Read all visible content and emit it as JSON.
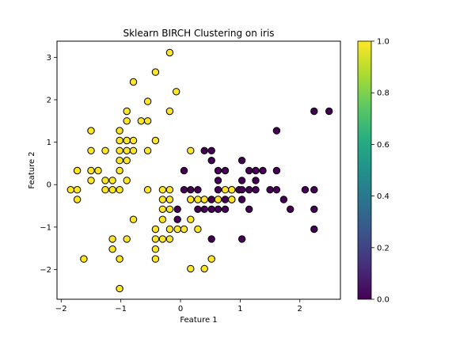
{
  "chart_data": {
    "type": "scatter",
    "title": "Sklearn BIRCH Clustering on iris",
    "xlabel": "Feature 1",
    "ylabel": "Feature 2",
    "xlim": [
      -2.07,
      2.68
    ],
    "ylim": [
      -2.7,
      3.38
    ],
    "xticks": [
      -2,
      -1,
      0,
      1,
      2
    ],
    "yticks": [
      -2,
      -1,
      0,
      1,
      2,
      3
    ],
    "grid": false,
    "colorbar": {
      "range": [
        0.0,
        1.0
      ],
      "ticks": [
        "0.0",
        "0.2",
        "0.4",
        "0.6",
        "0.8",
        "1.0"
      ],
      "colormap": "viridis"
    },
    "colors": {
      "cluster_0": "#440154",
      "cluster_1": "#fde725"
    },
    "series": [
      {
        "cluster": 0,
        "points": [
          [
            -0.05,
            -0.58
          ],
          [
            -0.05,
            -0.82
          ],
          [
            0.06,
            0.33
          ],
          [
            0.06,
            -0.12
          ],
          [
            0.17,
            -0.12
          ],
          [
            0.17,
            -0.35
          ],
          [
            0.29,
            -0.12
          ],
          [
            0.29,
            -0.58
          ],
          [
            0.4,
            0.8
          ],
          [
            0.4,
            -0.35
          ],
          [
            0.4,
            -0.58
          ],
          [
            0.52,
            0.8
          ],
          [
            0.52,
            0.57
          ],
          [
            0.52,
            -0.35
          ],
          [
            0.52,
            -0.58
          ],
          [
            0.52,
            -1.28
          ],
          [
            0.63,
            0.33
          ],
          [
            0.63,
            0.1
          ],
          [
            0.63,
            -0.12
          ],
          [
            0.63,
            -0.35
          ],
          [
            0.63,
            -0.58
          ],
          [
            0.75,
            0.33
          ],
          [
            0.75,
            -0.35
          ],
          [
            0.75,
            -0.58
          ],
          [
            0.86,
            -0.12
          ],
          [
            0.86,
            -0.35
          ],
          [
            0.98,
            -0.12
          ],
          [
            1.03,
            0.57
          ],
          [
            1.03,
            0.1
          ],
          [
            1.03,
            -0.12
          ],
          [
            1.03,
            -0.35
          ],
          [
            1.03,
            -1.28
          ],
          [
            1.15,
            0.33
          ],
          [
            1.15,
            -0.12
          ],
          [
            1.15,
            -0.58
          ],
          [
            1.26,
            0.33
          ],
          [
            1.26,
            0.1
          ],
          [
            1.26,
            -0.12
          ],
          [
            1.38,
            0.33
          ],
          [
            1.5,
            -0.12
          ],
          [
            1.61,
            1.27
          ],
          [
            1.61,
            0.33
          ],
          [
            1.61,
            -0.12
          ],
          [
            1.73,
            -0.35
          ],
          [
            1.84,
            -0.58
          ],
          [
            2.09,
            -0.12
          ],
          [
            2.24,
            1.73
          ],
          [
            2.24,
            -0.12
          ],
          [
            2.24,
            -0.58
          ],
          [
            2.24,
            -1.05
          ],
          [
            2.49,
            1.73
          ]
        ]
      },
      {
        "cluster": 1,
        "points": [
          [
            -0.18,
            3.11
          ],
          [
            -0.42,
            2.65
          ],
          [
            -0.79,
            2.42
          ],
          [
            -0.07,
            2.19
          ],
          [
            -0.55,
            1.96
          ],
          [
            -0.9,
            1.73
          ],
          [
            -0.18,
            1.73
          ],
          [
            -0.9,
            1.5
          ],
          [
            -0.66,
            1.5
          ],
          [
            -0.55,
            1.5
          ],
          [
            -1.02,
            1.27
          ],
          [
            -1.5,
            1.27
          ],
          [
            -1.5,
            0.8
          ],
          [
            -1.26,
            0.8
          ],
          [
            -1.02,
            1.04
          ],
          [
            -1.02,
            0.8
          ],
          [
            -0.9,
            1.04
          ],
          [
            -0.79,
            1.04
          ],
          [
            -0.9,
            0.8
          ],
          [
            -0.79,
            0.8
          ],
          [
            -0.55,
            0.8
          ],
          [
            -0.42,
            1.04
          ],
          [
            -1.02,
            0.57
          ],
          [
            -0.9,
            0.57
          ],
          [
            -1.73,
            0.33
          ],
          [
            -1.5,
            0.33
          ],
          [
            -1.38,
            0.33
          ],
          [
            -1.02,
            0.33
          ],
          [
            -1.26,
            0.1
          ],
          [
            -1.14,
            0.1
          ],
          [
            -0.9,
            0.1
          ],
          [
            -1.26,
            -0.12
          ],
          [
            -1.14,
            -0.12
          ],
          [
            -1.02,
            -0.12
          ],
          [
            -1.5,
            0.1
          ],
          [
            -1.84,
            -0.12
          ],
          [
            -1.73,
            -0.12
          ],
          [
            -1.73,
            -0.35
          ],
          [
            -0.55,
            -0.12
          ],
          [
            -0.3,
            -0.12
          ],
          [
            -0.18,
            -0.12
          ],
          [
            -0.3,
            -0.35
          ],
          [
            -0.18,
            -0.35
          ],
          [
            -0.3,
            -0.58
          ],
          [
            -0.18,
            -0.58
          ],
          [
            -0.3,
            -0.82
          ],
          [
            -0.79,
            -0.82
          ],
          [
            -0.42,
            -1.05
          ],
          [
            -0.18,
            -1.05
          ],
          [
            -0.42,
            -1.28
          ],
          [
            -0.3,
            -1.28
          ],
          [
            -0.18,
            -1.28
          ],
          [
            -0.42,
            -1.52
          ],
          [
            -0.42,
            -1.75
          ],
          [
            -1.14,
            -1.28
          ],
          [
            -0.9,
            -1.28
          ],
          [
            -1.14,
            -1.52
          ],
          [
            -1.02,
            -1.75
          ],
          [
            -1.62,
            -1.75
          ],
          [
            -1.02,
            -2.45
          ],
          [
            0.17,
            -1.98
          ],
          [
            0.17,
            0.8
          ],
          [
            0.4,
            -1.98
          ],
          [
            0.52,
            -1.75
          ],
          [
            0.17,
            -0.82
          ],
          [
            0.29,
            -1.05
          ],
          [
            0.06,
            -1.05
          ],
          [
            -0.05,
            -1.05
          ],
          [
            0.17,
            -0.35
          ],
          [
            0.29,
            -0.35
          ],
          [
            0.4,
            -0.35
          ],
          [
            0.86,
            -0.12
          ],
          [
            0.75,
            -0.12
          ],
          [
            0.63,
            -0.35
          ],
          [
            0.86,
            -0.35
          ]
        ]
      }
    ]
  }
}
